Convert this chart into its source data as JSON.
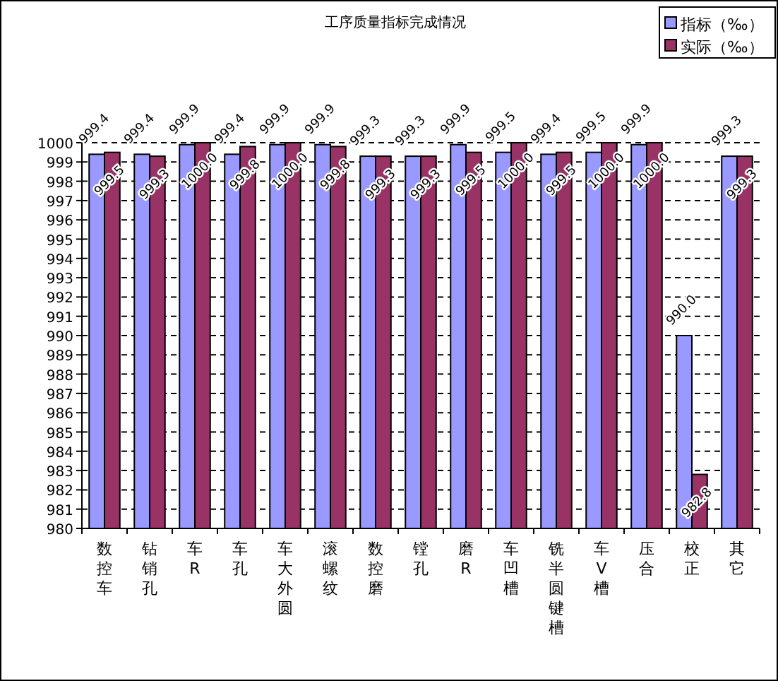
{
  "chart_data": {
    "type": "bar",
    "title": "工序质量指标完成情况",
    "categories": [
      "数控车",
      "钻销孔",
      "车R",
      "车孔",
      "车大外圆",
      "滚螺纹",
      "数控磨",
      "镗孔",
      "磨R",
      "车凹槽",
      "铣半圆键槽",
      "车V槽",
      "压合",
      "校正",
      "其它"
    ],
    "series": [
      {
        "name": "指标（‰）",
        "color": "#9999ff",
        "values": [
          999.4,
          999.4,
          999.9,
          999.4,
          999.9,
          999.9,
          999.3,
          999.3,
          999.9,
          999.5,
          999.4,
          999.5,
          999.9,
          990.0,
          999.3
        ],
        "value_labels": [
          "999.4",
          "999.4",
          "999.9",
          "999.4",
          "999.9",
          "999.9",
          "999.3",
          "999.3",
          "999.9",
          "999.5",
          "999.4",
          "999.5",
          "999.9",
          "990.0",
          "999.3"
        ]
      },
      {
        "name": "实际（‰）",
        "color": "#993366",
        "values": [
          999.5,
          999.3,
          1000.0,
          999.8,
          1000.0,
          999.8,
          999.3,
          999.3,
          999.5,
          1000.0,
          999.5,
          1000.0,
          1000.0,
          982.8,
          999.3
        ],
        "value_labels": [
          "999.5",
          "999.3",
          "1000.0",
          "999.8",
          "1000.0",
          "999.8",
          "999.3",
          "999.3",
          "999.5",
          "1000.0",
          "999.5",
          "1000.0",
          "1000.0",
          "982.8",
          "999.3"
        ]
      }
    ],
    "ylim": [
      980,
      1000
    ],
    "yticks": [
      980,
      981,
      982,
      983,
      984,
      985,
      986,
      987,
      988,
      989,
      990,
      991,
      992,
      993,
      994,
      995,
      996,
      997,
      998,
      999,
      1000
    ],
    "grid": "y",
    "legend": "top right"
  }
}
